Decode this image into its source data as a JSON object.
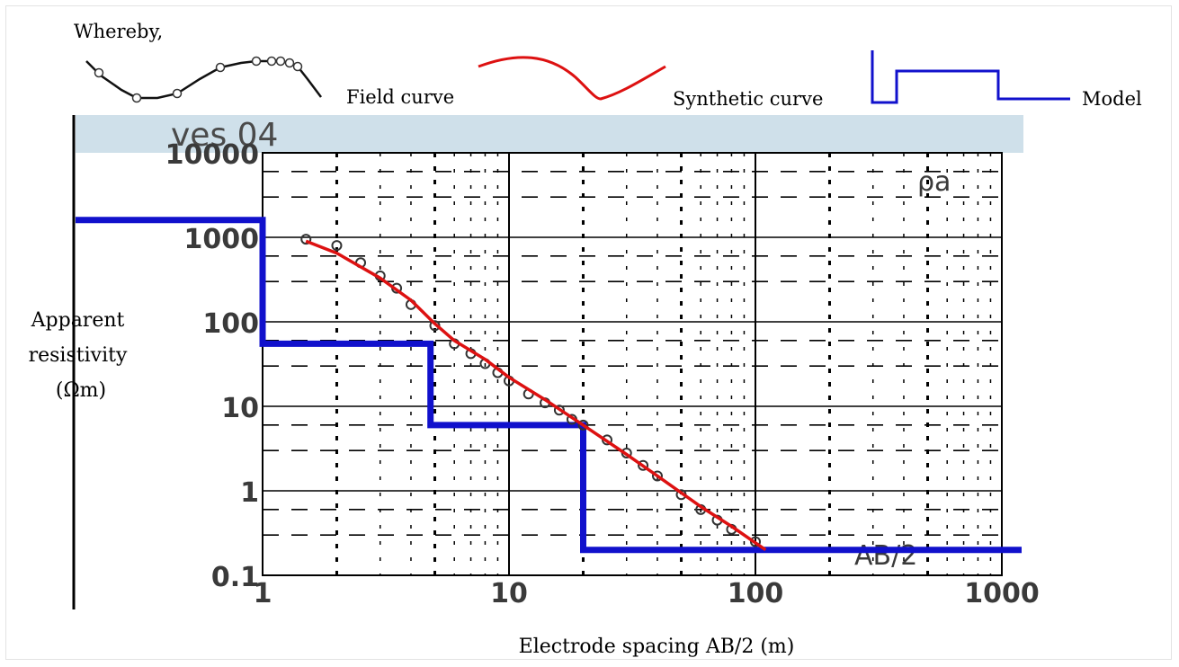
{
  "legend": {
    "intro": "Whereby,",
    "field_label": "Field curve",
    "synthetic_label": "Synthetic curve",
    "model_label": "Model",
    "colors": {
      "field": "#111111",
      "synthetic": "#dd1111",
      "model": "#1111cc"
    }
  },
  "chart_data": {
    "type": "line",
    "title": "ves 04",
    "xlabel": "Electrode spacing AB/2 (m)",
    "ylabel": [
      "Apparent",
      "resistivity",
      "(Ωm)"
    ],
    "x_scale": "log",
    "y_scale": "log",
    "xlim": [
      1,
      1000
    ],
    "ylim": [
      0.1,
      10000
    ],
    "x_ticks": [
      "1",
      "10",
      "100",
      "1000"
    ],
    "y_ticks": [
      "0.1",
      "1",
      "10",
      "100",
      "1000",
      "10000"
    ],
    "rho_label": "ρa",
    "ab_label": "AB/2",
    "grid": true,
    "series": [
      {
        "kind": "field",
        "x": [
          1.5,
          2,
          2.5,
          3,
          3.5,
          4,
          5,
          6,
          7,
          8,
          9,
          10,
          12,
          14,
          16,
          18,
          20,
          25,
          30,
          35,
          40,
          50,
          60,
          70,
          80,
          100
        ],
        "y": [
          950,
          800,
          500,
          350,
          250,
          160,
          90,
          55,
          42,
          32,
          25,
          20,
          14,
          11,
          9,
          7,
          6,
          4,
          2.8,
          2,
          1.5,
          0.9,
          0.6,
          0.45,
          0.35,
          0.25
        ]
      },
      {
        "kind": "synthetic",
        "x": [
          1.5,
          2,
          3,
          4,
          5,
          6,
          8,
          10,
          14,
          20,
          30,
          40,
          60,
          80,
          110
        ],
        "y": [
          900,
          650,
          330,
          180,
          95,
          60,
          36,
          22,
          12,
          6,
          2.7,
          1.5,
          0.65,
          0.38,
          0.2
        ]
      },
      {
        "kind": "model",
        "x": [
          0,
          1,
          1,
          4.8,
          4.8,
          20,
          20,
          1000
        ],
        "y": [
          1600,
          1600,
          55,
          55,
          6,
          6,
          0.2,
          0.2
        ]
      }
    ]
  }
}
